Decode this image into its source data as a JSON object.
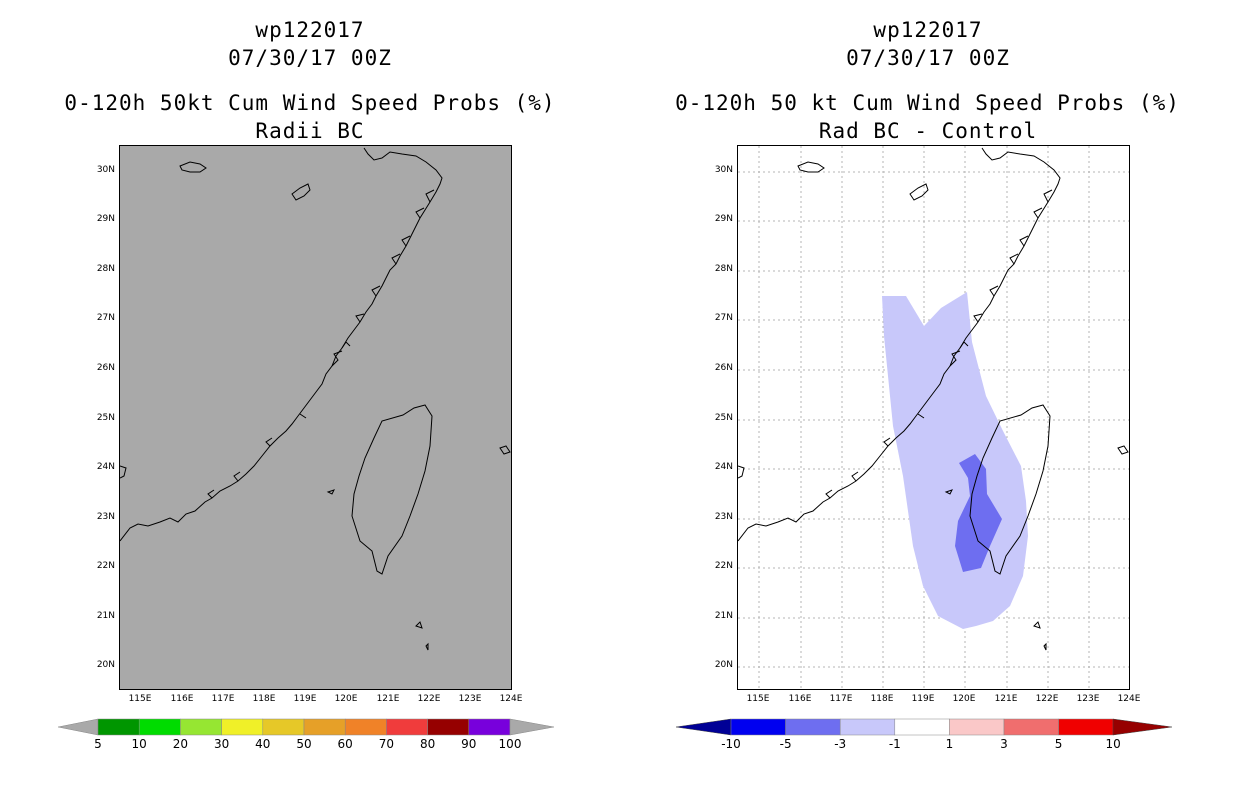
{
  "colors": {
    "land_sea_fill": "#a9a9a9",
    "diff_light_neg": "#c8c8fa",
    "diff_mid_neg": "#6e6ef0"
  },
  "left_panel": {
    "storm_id": "wp122017",
    "date": "07/30/17 00Z",
    "title_line1": "0-120h 50kt Cum Wind Speed Probs (%)",
    "title_line2": "Radii BC",
    "lat_labels": [
      "30N",
      "29N",
      "28N",
      "27N",
      "26N",
      "25N",
      "24N",
      "23N",
      "22N",
      "21N",
      "20N"
    ],
    "lon_labels": [
      "115E",
      "116E",
      "117E",
      "118E",
      "119E",
      "120E",
      "121E",
      "122E",
      "123E",
      "124E"
    ],
    "colorbar": {
      "labels": [
        "5",
        "10",
        "20",
        "30",
        "40",
        "50",
        "60",
        "70",
        "80",
        "90",
        "100"
      ],
      "colors": [
        "#009600",
        "#00dc00",
        "#96e632",
        "#f0f028",
        "#e6c828",
        "#e6a028",
        "#f08228",
        "#f03c3c",
        "#960000",
        "#7800dc"
      ]
    }
  },
  "right_panel": {
    "storm_id": "wp122017",
    "date": "07/30/17 00Z",
    "title_line1": "0-120h 50 kt Cum Wind Speed Probs (%)",
    "title_line2": "Rad BC - Control",
    "lat_labels": [
      "30N",
      "29N",
      "28N",
      "27N",
      "26N",
      "25N",
      "24N",
      "23N",
      "22N",
      "21N",
      "20N"
    ],
    "lon_labels": [
      "115E",
      "116E",
      "117E",
      "118E",
      "119E",
      "120E",
      "121E",
      "122E",
      "123E",
      "124E"
    ],
    "colorbar": {
      "labels": [
        "-10",
        "-5",
        "-3",
        "-1",
        "1",
        "3",
        "5",
        "10"
      ],
      "colors": [
        "#0000f0",
        "#6e6ef0",
        "#c8c8fa",
        "#ffffff",
        "#fac8c8",
        "#f06e6e",
        "#f00000"
      ],
      "end_colors": [
        "#000096",
        "#960000"
      ]
    }
  }
}
